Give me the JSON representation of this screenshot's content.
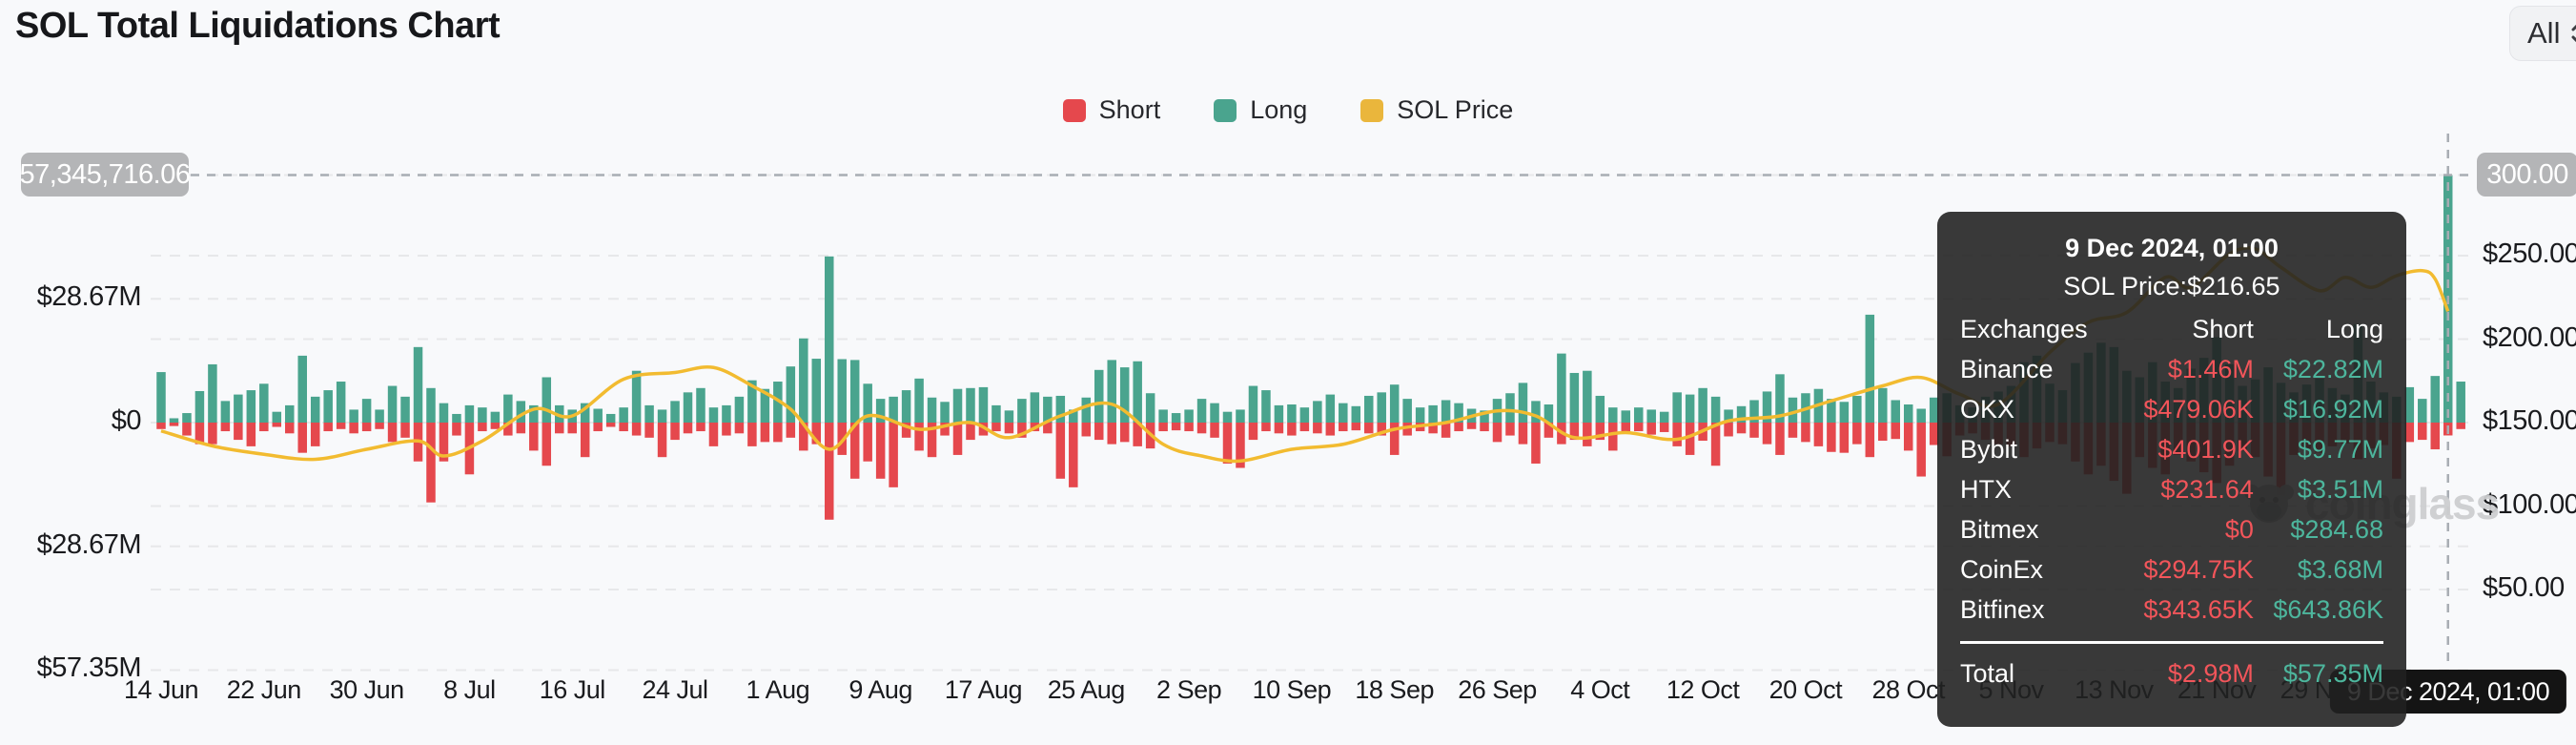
{
  "header": {
    "title": "SOL Total Liquidations Chart",
    "range_button": "All"
  },
  "legend": {
    "items": [
      {
        "label": "Short",
        "color": "#e5484d"
      },
      {
        "label": "Long",
        "color": "#4aa48e"
      },
      {
        "label": "SOL Price",
        "color": "#eab63c"
      }
    ]
  },
  "axes": {
    "left_ticks": [
      {
        "label": "$28.67M",
        "value": 28.67
      },
      {
        "label": "$0",
        "value": 0
      },
      {
        "label": "$28.67M",
        "value": -28.67
      },
      {
        "label": "$57.35M",
        "value": -57.35
      }
    ],
    "right_ticks": [
      {
        "label": "$250.00",
        "price": 250
      },
      {
        "label": "$200.00",
        "price": 200
      },
      {
        "label": "$150.00",
        "price": 150
      },
      {
        "label": "$100.00",
        "price": 100
      },
      {
        "label": "$50.00",
        "price": 50
      }
    ],
    "x_ticks": [
      {
        "label": "14 Jun",
        "day": 0
      },
      {
        "label": "22 Jun",
        "day": 8
      },
      {
        "label": "30 Jun",
        "day": 16
      },
      {
        "label": "8 Jul",
        "day": 24
      },
      {
        "label": "16 Jul",
        "day": 32
      },
      {
        "label": "24 Jul",
        "day": 40
      },
      {
        "label": "1 Aug",
        "day": 48
      },
      {
        "label": "9 Aug",
        "day": 56
      },
      {
        "label": "17 Aug",
        "day": 64
      },
      {
        "label": "25 Aug",
        "day": 72
      },
      {
        "label": "2 Sep",
        "day": 80
      },
      {
        "label": "10 Sep",
        "day": 88
      },
      {
        "label": "18 Sep",
        "day": 96
      },
      {
        "label": "26 Sep",
        "day": 104
      },
      {
        "label": "4 Oct",
        "day": 112
      },
      {
        "label": "12 Oct",
        "day": 120
      },
      {
        "label": "20 Oct",
        "day": 128
      },
      {
        "label": "28 Oct",
        "day": 136
      },
      {
        "label": "5 Nov",
        "day": 144
      },
      {
        "label": "13 Nov",
        "day": 152
      },
      {
        "label": "21 Nov",
        "day": 160
      },
      {
        "label": "29 Nov",
        "day": 168
      }
    ]
  },
  "crosshair": {
    "value_label": "57,345,716.06",
    "price_label": "300.00",
    "date_label": "9 Dec 2024, 01:00",
    "day": 178
  },
  "tooltip": {
    "date": "9 Dec 2024, 01:00",
    "price_line": "SOL Price:$216.65",
    "columns": [
      "Exchanges",
      "Short",
      "Long"
    ],
    "rows": [
      {
        "exchange": "Binance",
        "short": "$1.46M",
        "long": "$22.82M"
      },
      {
        "exchange": "OKX",
        "short": "$479.06K",
        "long": "$16.92M"
      },
      {
        "exchange": "Bybit",
        "short": "$401.9K",
        "long": "$9.77M"
      },
      {
        "exchange": "HTX",
        "short": "$231.64",
        "long": "$3.51M"
      },
      {
        "exchange": "Bitmex",
        "short": "$0",
        "long": "$284.68"
      },
      {
        "exchange": "CoinEx",
        "short": "$294.75K",
        "long": "$3.68M"
      },
      {
        "exchange": "Bitfinex",
        "short": "$343.65K",
        "long": "$643.86K"
      }
    ],
    "total": {
      "exchange": "Total",
      "short": "$2.98M",
      "long": "$57.35M"
    }
  },
  "watermark": {
    "text": "coinglass"
  },
  "colors": {
    "short": "#e5484d",
    "long": "#4aa48e",
    "price": "#f2bb30",
    "grid": "#e7e8ea",
    "crosshair": "#a8adb3",
    "tooltip_short": "#f2555a",
    "tooltip_long": "#4db69d"
  },
  "chart_data": {
    "type": "bar+line",
    "title": "SOL Total Liquidations Chart",
    "unit": "USD millions (liquidations), USD (price)",
    "start_date": "14 Jun 2024",
    "end_date": "10 Dec 2024",
    "interval": "daily",
    "ylim_left_musd": [
      -57.35,
      57.35
    ],
    "ylim_right_price": [
      50,
      300
    ],
    "legend_position": "top-center",
    "grid": "dashed",
    "hover_day_index": 178,
    "hover_totals": {
      "short_musd": 2.98,
      "long_musd": 57.35,
      "sol_price": 216.65
    },
    "series": [
      {
        "name": "Long",
        "axis": "left",
        "direction": "up",
        "values_musd": [
          11.7,
          1.0,
          2.2,
          7.3,
          13.5,
          5.0,
          6.5,
          7.5,
          9.0,
          2.5,
          4.0,
          15.5,
          6.0,
          7.5,
          9.5,
          3.0,
          5.5,
          3.0,
          8.5,
          6.0,
          17.5,
          8.0,
          4.5,
          2.0,
          4.0,
          3.5,
          2.5,
          6.5,
          5.0,
          4.0,
          10.5,
          4.0,
          3.0,
          4.5,
          3.2,
          2.0,
          3.5,
          12.0,
          4.0,
          3.0,
          5.0,
          7.0,
          8.0,
          3.5,
          4.0,
          6.0,
          9.8,
          7.8,
          9.5,
          13.0,
          19.5,
          14.8,
          38.5,
          14.7,
          14.5,
          9.0,
          5.5,
          6.0,
          7.5,
          10.2,
          5.8,
          4.8,
          7.8,
          8.0,
          8.2,
          4.0,
          2.8,
          5.5,
          7.0,
          6.0,
          6.2,
          3.0,
          5.8,
          12.2,
          14.5,
          12.8,
          14.2,
          6.8,
          3.0,
          2.2,
          3.0,
          5.5,
          4.5,
          2.5,
          3.0,
          8.5,
          7.5,
          4.0,
          4.2,
          3.5,
          5.0,
          6.5,
          4.5,
          3.8,
          6.2,
          7.0,
          8.8,
          5.5,
          3.5,
          4.0,
          5.2,
          4.5,
          3.2,
          2.8,
          5.5,
          6.8,
          9.2,
          5.0,
          4.2,
          16.0,
          11.5,
          12.0,
          6.2,
          3.5,
          2.8,
          3.5,
          3.0,
          2.5,
          7.0,
          6.5,
          8.0,
          6.0,
          3.0,
          3.8,
          5.2,
          7.2,
          11.2,
          5.8,
          6.8,
          7.8,
          5.5,
          4.8,
          6.2,
          25.0,
          8.0,
          5.2,
          4.2,
          3.2,
          5.8,
          6.8,
          4.0,
          3.5,
          6.0,
          7.2,
          8.5,
          14.0,
          15.5,
          9.0,
          7.5,
          13.8,
          16.2,
          18.5,
          17.5,
          12.0,
          10.5,
          14.0,
          9.5,
          8.0,
          12.5,
          15.0,
          19.8,
          13.5,
          8.5,
          10.0,
          12.8,
          9.2,
          7.0,
          8.8,
          10.2,
          8.0,
          6.5,
          22.8,
          9.5,
          7.0,
          6.0,
          8.2,
          5.5,
          10.8,
          57.35,
          9.5
        ]
      },
      {
        "name": "Short",
        "axis": "left",
        "direction": "down",
        "values_musd": [
          1.5,
          0.8,
          3.0,
          5.0,
          5.0,
          2.0,
          4.0,
          5.5,
          2.0,
          1.0,
          2.5,
          7.0,
          5.5,
          2.0,
          1.5,
          2.5,
          2.0,
          1.5,
          4.5,
          3.5,
          9.0,
          18.5,
          9.0,
          3.0,
          12.0,
          2.0,
          1.5,
          3.0,
          2.5,
          6.5,
          10.0,
          2.5,
          2.5,
          8.0,
          2.0,
          1.0,
          2.0,
          3.0,
          3.5,
          8.0,
          4.0,
          2.5,
          2.0,
          5.5,
          3.0,
          2.5,
          5.5,
          4.5,
          4.5,
          3.5,
          6.5,
          5.0,
          22.5,
          7.5,
          13.0,
          9.0,
          13.0,
          15.0,
          3.5,
          6.5,
          8.0,
          3.0,
          7.5,
          4.0,
          3.0,
          2.0,
          2.5,
          3.5,
          2.0,
          2.5,
          13.0,
          15.0,
          3.2,
          4.0,
          5.0,
          4.5,
          5.5,
          6.0,
          2.0,
          1.8,
          2.0,
          2.5,
          3.5,
          9.5,
          10.5,
          4.0,
          2.0,
          2.5,
          3.0,
          2.0,
          2.5,
          3.0,
          2.0,
          1.8,
          2.5,
          3.0,
          7.5,
          3.0,
          2.0,
          2.5,
          3.5,
          2.0,
          1.5,
          2.0,
          4.5,
          3.0,
          5.0,
          9.5,
          3.5,
          5.0,
          4.0,
          5.5,
          4.0,
          6.5,
          2.5,
          2.0,
          2.8,
          2.2,
          5.5,
          7.5,
          4.2,
          10.0,
          3.2,
          2.5,
          3.5,
          5.0,
          7.5,
          3.5,
          4.5,
          5.5,
          6.8,
          7.0,
          5.0,
          8.0,
          4.2,
          3.8,
          6.5,
          12.5,
          5.2,
          7.8,
          3.0,
          2.5,
          4.0,
          5.0,
          5.5,
          8.0,
          6.0,
          4.5,
          5.0,
          9.0,
          12.0,
          10.0,
          13.5,
          16.5,
          8.0,
          10.5,
          12.0,
          7.5,
          9.0,
          11.5,
          14.0,
          10.0,
          6.5,
          8.0,
          12.5,
          16.8,
          7.5,
          6.0,
          7.0,
          5.5,
          4.8,
          8.5,
          6.0,
          5.2,
          13.0,
          4.5,
          4.0,
          6.2,
          2.98,
          1.5
        ]
      },
      {
        "name": "SOL Price",
        "axis": "right",
        "type": "line",
        "keypoints_day_price": [
          [
            0,
            145
          ],
          [
            4,
            136
          ],
          [
            8,
            131
          ],
          [
            12,
            128
          ],
          [
            16,
            134
          ],
          [
            20,
            139
          ],
          [
            22,
            130
          ],
          [
            25,
            139
          ],
          [
            29,
            158
          ],
          [
            32,
            154
          ],
          [
            36,
            176
          ],
          [
            40,
            180
          ],
          [
            43,
            183
          ],
          [
            46,
            172
          ],
          [
            49,
            158
          ],
          [
            52,
            134
          ],
          [
            55,
            154
          ],
          [
            59,
            146
          ],
          [
            63,
            150
          ],
          [
            66,
            141
          ],
          [
            70,
            154
          ],
          [
            74,
            161
          ],
          [
            78,
            137
          ],
          [
            81,
            130
          ],
          [
            84,
            127
          ],
          [
            88,
            134
          ],
          [
            92,
            137
          ],
          [
            96,
            146
          ],
          [
            100,
            150
          ],
          [
            104,
            157
          ],
          [
            107,
            154
          ],
          [
            110,
            141
          ],
          [
            114,
            144
          ],
          [
            118,
            140
          ],
          [
            122,
            151
          ],
          [
            126,
            154
          ],
          [
            130,
            163
          ],
          [
            134,
            172
          ],
          [
            137,
            177
          ],
          [
            140,
            167
          ],
          [
            143,
            161
          ],
          [
            147,
            192
          ],
          [
            150,
            210
          ],
          [
            153,
            216
          ],
          [
            156,
            237
          ],
          [
            158,
            231
          ],
          [
            161,
            251
          ],
          [
            163,
            254
          ],
          [
            165,
            243
          ],
          [
            168,
            229
          ],
          [
            170,
            237
          ],
          [
            172,
            231
          ],
          [
            174,
            238
          ],
          [
            176,
            241
          ],
          [
            177,
            236
          ],
          [
            178,
            216.65
          ]
        ]
      }
    ]
  }
}
